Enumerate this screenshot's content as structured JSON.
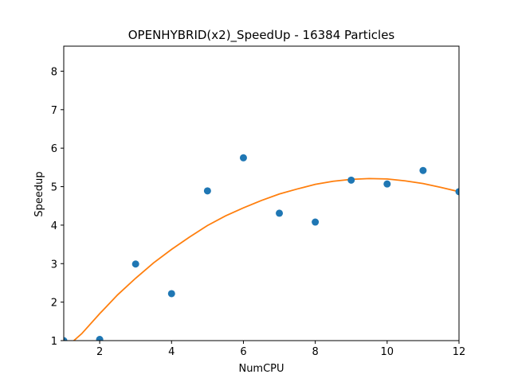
{
  "chart_data": {
    "type": "scatter",
    "title": "OPENHYBRID(x2)_SpeedUp - 16384 Particles",
    "xlabel": "NumCPU",
    "ylabel": "Speedup",
    "xlim": [
      1,
      12
    ],
    "ylim": [
      1,
      8.65
    ],
    "xticks": [
      2,
      4,
      6,
      8,
      10,
      12
    ],
    "yticks": [
      1,
      2,
      3,
      4,
      5,
      6,
      7,
      8
    ],
    "grid": false,
    "legend": "none",
    "series": [
      {
        "type": "scatter",
        "color": "#1f77b4",
        "x": [
          1,
          2,
          3,
          4,
          5,
          6,
          7,
          8,
          9,
          10,
          11,
          12
        ],
        "y": [
          1.0,
          1.03,
          2.99,
          2.22,
          4.89,
          5.75,
          4.31,
          4.08,
          5.17,
          5.07,
          5.42,
          4.87
        ]
      },
      {
        "type": "line",
        "color": "#ff7f0e",
        "x": [
          1.28,
          1.5,
          2,
          2.5,
          3,
          3.5,
          4,
          4.5,
          5,
          5.5,
          6,
          6.5,
          7,
          7.5,
          8,
          8.5,
          9,
          9.5,
          10,
          10.5,
          11,
          11.5,
          12
        ],
        "y": [
          1.0,
          1.18,
          1.7,
          2.19,
          2.62,
          3.02,
          3.37,
          3.69,
          3.99,
          4.24,
          4.45,
          4.64,
          4.81,
          4.94,
          5.06,
          5.14,
          5.19,
          5.21,
          5.2,
          5.15,
          5.08,
          4.98,
          4.87
        ]
      }
    ]
  }
}
